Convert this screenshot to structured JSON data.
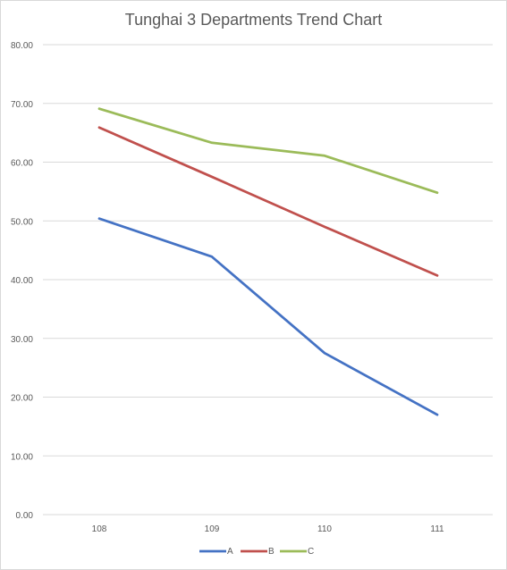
{
  "chart_data": {
    "type": "line",
    "title": "Tunghai 3 Departments Trend Chart",
    "categories": [
      "108",
      "109",
      "110",
      "111"
    ],
    "ylim": [
      0,
      80
    ],
    "yticks": [
      "0.00",
      "10.00",
      "20.00",
      "30.00",
      "40.00",
      "50.00",
      "60.00",
      "70.00",
      "80.00"
    ],
    "grid": true,
    "legend_position": "bottom",
    "series": [
      {
        "name": "A",
        "color": "#4472c4",
        "values": [
          50.4,
          43.9,
          27.5,
          17.0
        ]
      },
      {
        "name": "B",
        "color": "#c0504d",
        "values": [
          65.9,
          57.5,
          49.0,
          40.7
        ]
      },
      {
        "name": "C",
        "color": "#9bbb59",
        "values": [
          69.1,
          63.3,
          61.1,
          54.8
        ]
      }
    ]
  }
}
